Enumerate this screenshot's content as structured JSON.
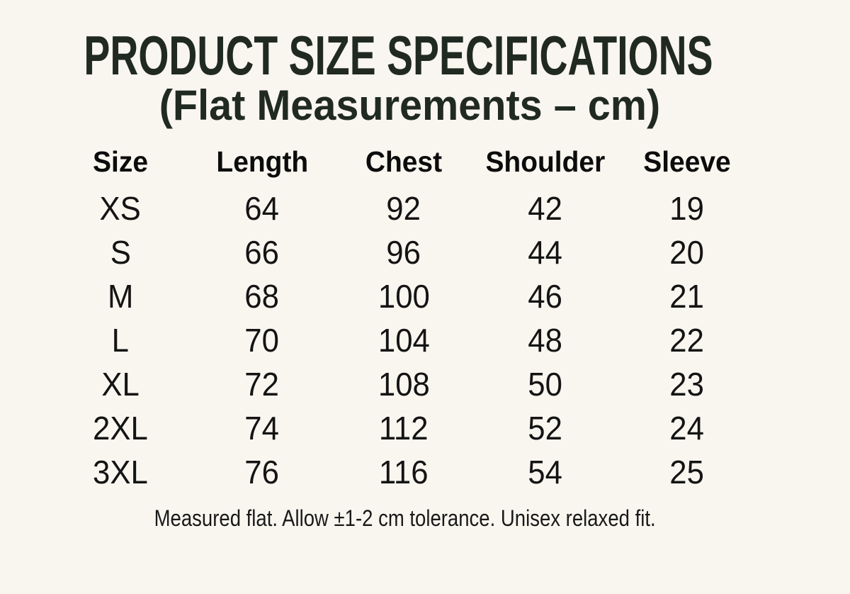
{
  "colors": {
    "background": "#f9f6ef",
    "title_text": "#212a21",
    "table_text": "#141414"
  },
  "chart_data": {
    "type": "table",
    "title": "PRODUCT SIZE SPECIFICATIONS",
    "subtitle": "(Flat Measurements – cm)",
    "unit": "cm",
    "columns": [
      "Size",
      "Length",
      "Chest",
      "Shoulder",
      "Sleeve"
    ],
    "rows": [
      [
        "XS",
        "64",
        "92",
        "42",
        "19"
      ],
      [
        "S",
        "66",
        "96",
        "44",
        "20"
      ],
      [
        "M",
        "68",
        "100",
        "46",
        "21"
      ],
      [
        "L",
        "70",
        "104",
        "48",
        "22"
      ],
      [
        "XL",
        "72",
        "108",
        "50",
        "23"
      ],
      [
        "2XL",
        "74",
        "112",
        "52",
        "24"
      ],
      [
        "3XL",
        "76",
        "116",
        "54",
        "25"
      ]
    ],
    "note": "Measured flat. Allow ±1-2 cm tolerance. Unisex relaxed fit."
  }
}
